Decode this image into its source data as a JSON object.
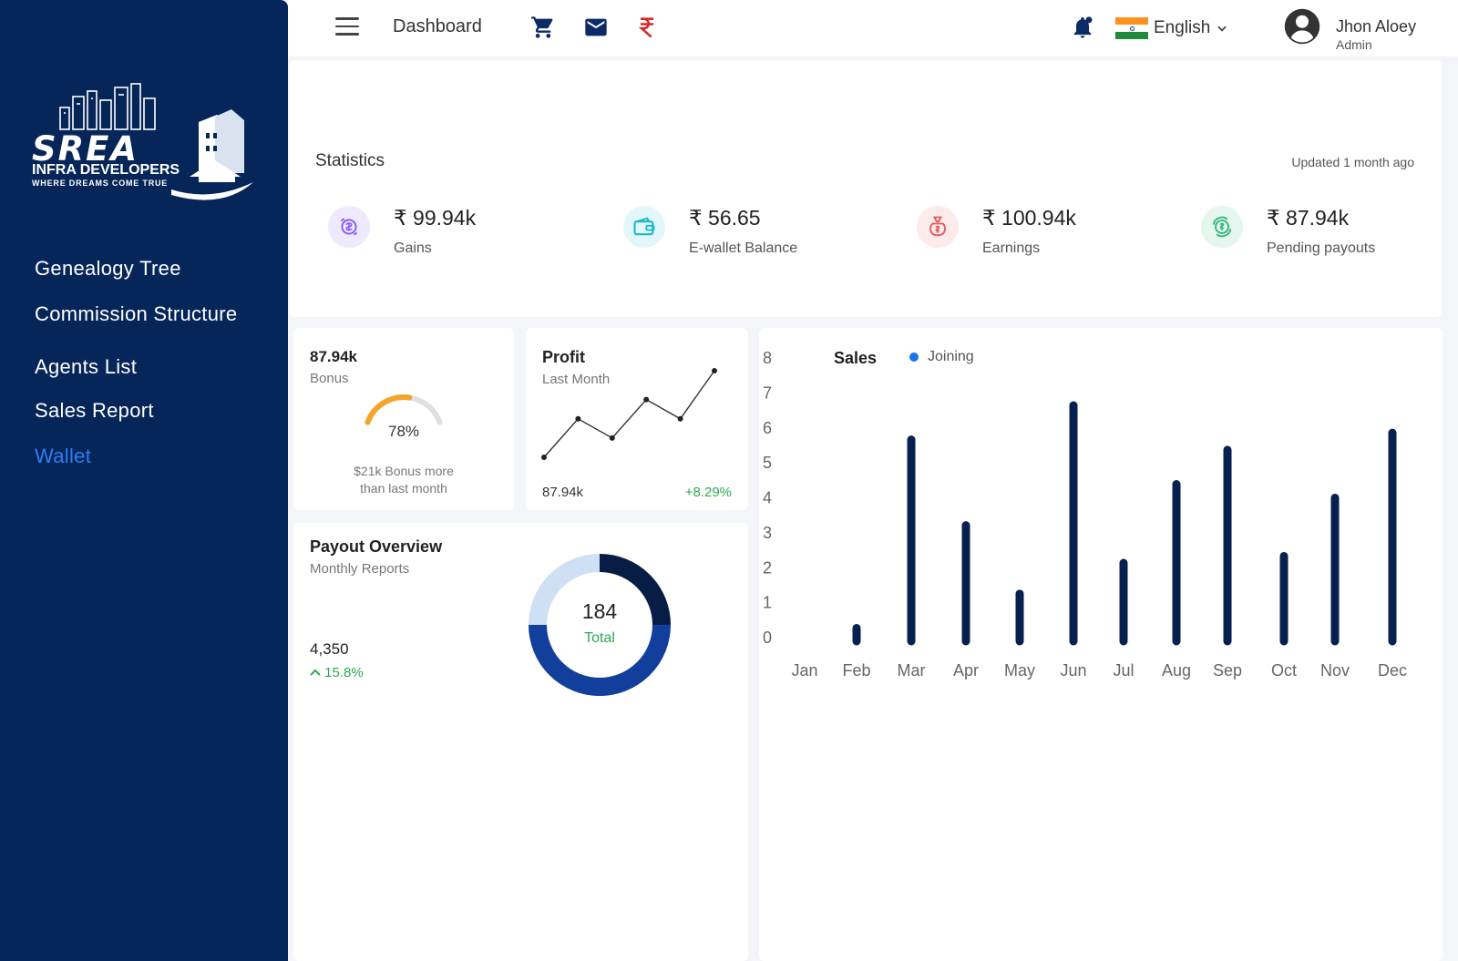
{
  "brand": {
    "name": "SREA",
    "line1": "INFRA DEVELOPERS",
    "line2": "WHERE DREAMS COME TRUE"
  },
  "sidebar": {
    "items": [
      {
        "label": "Genealogy Tree"
      },
      {
        "label": "Commission Structure"
      },
      {
        "label": "Agents List"
      },
      {
        "label": "Sales Report"
      },
      {
        "label": "Wallet",
        "active": true
      }
    ]
  },
  "topbar": {
    "title": "Dashboard",
    "icons": [
      "cart-icon",
      "mail-icon",
      "rupee-icon",
      "bell-icon"
    ],
    "language": "English",
    "user_name": "Jhon Aloey",
    "user_role": "Admin"
  },
  "statistics": {
    "title": "Statistics",
    "updated": "Updated 1 month ago",
    "items": [
      {
        "value": "₹ 99.94k",
        "label": "Gains",
        "icon": "gains-icon",
        "color": "#8a5cf6"
      },
      {
        "value": "₹ 56.65",
        "label": "E-wallet Balance",
        "icon": "wallet-icon",
        "color": "#18b7c9"
      },
      {
        "value": "₹ 100.94k",
        "label": "Earnings",
        "icon": "money-bag-icon",
        "color": "#e45a5a"
      },
      {
        "value": "₹ 87.94k",
        "label": "Pending payouts",
        "icon": "payout-icon",
        "color": "#2fb67c"
      }
    ]
  },
  "bonus": {
    "value": "87.94k",
    "label": "Bonus",
    "percent_text": "78%",
    "percent": 78,
    "note_line1": "$21k Bonus more",
    "note_line2": "than last month"
  },
  "profit": {
    "title": "Profit",
    "subtitle": "Last Month",
    "value": "87.94k",
    "change": "+8.29%",
    "trend": [
      1,
      5,
      3,
      7,
      5,
      10
    ]
  },
  "payout": {
    "title": "Payout Overview",
    "subtitle": "Monthly Reports",
    "value": "4,350",
    "change": "15.8%",
    "total": "184",
    "total_label": "Total"
  },
  "chart_data": {
    "type": "bar",
    "title": "Sales",
    "legend": "Joining",
    "categories": [
      "Jan",
      "Feb",
      "Mar",
      "Apr",
      "May",
      "Jun",
      "Jul",
      "Aug",
      "Sep",
      "Oct",
      "Nov",
      "Dec"
    ],
    "values": [
      0,
      0.6,
      6.1,
      3.6,
      1.6,
      7.1,
      2.5,
      4.8,
      5.8,
      2.7,
      4.4,
      6.3
    ],
    "ylim": [
      0,
      8
    ],
    "yticks": [
      "8",
      "7",
      "6",
      "5",
      "4",
      "3",
      "2",
      "1",
      "0"
    ],
    "colors": {
      "bar": "#08204f",
      "legend": "#1a73e8"
    }
  }
}
